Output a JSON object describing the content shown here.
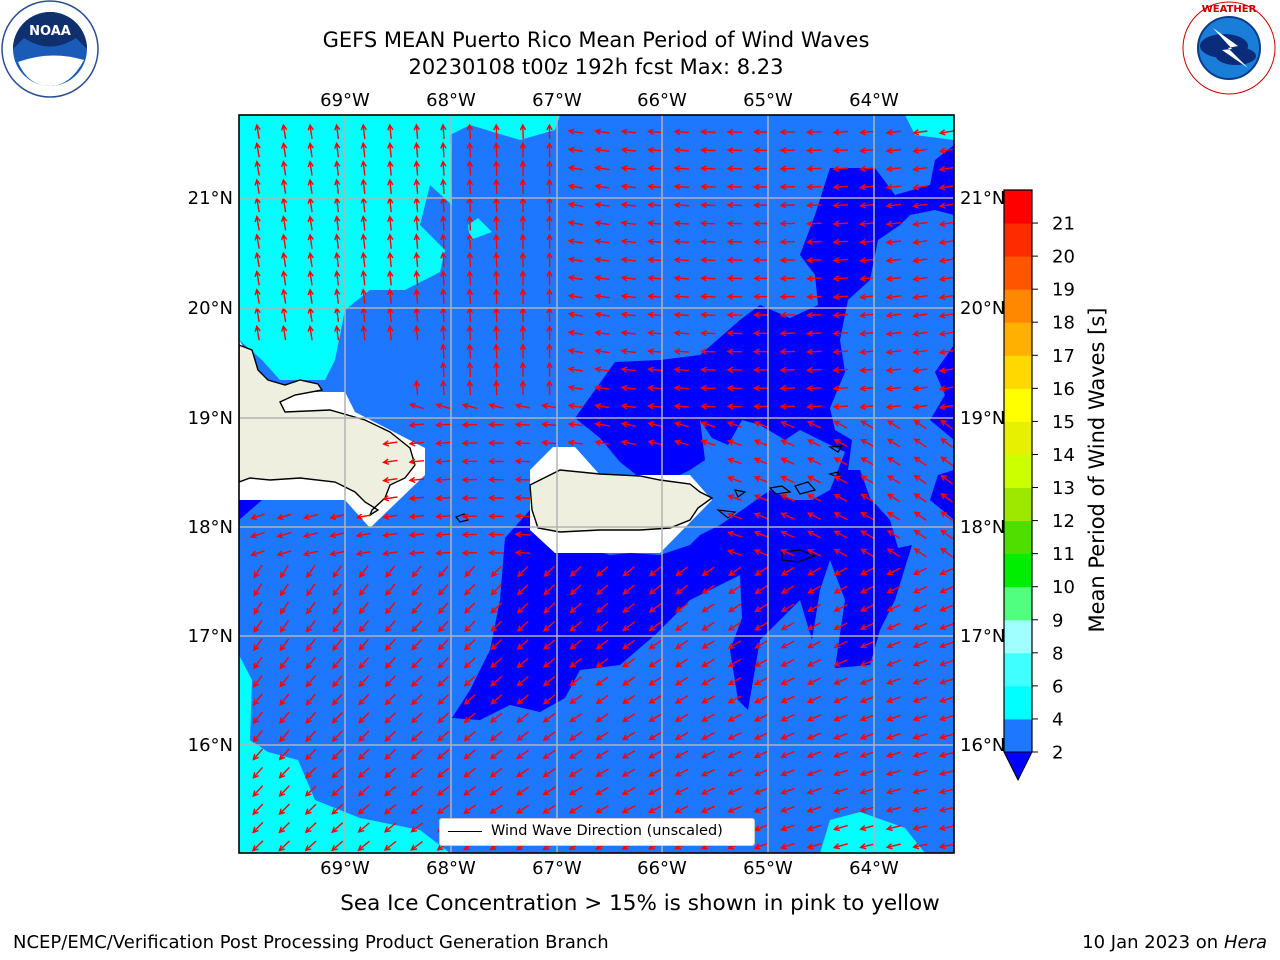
{
  "title": {
    "line1": "GEFS MEAN Puerto Rico Mean Period of Wind Waves",
    "line2": "20230108 t00z 192h fcst   Max: 8.23"
  },
  "map": {
    "lon_labels": [
      "69°W",
      "68°W",
      "67°W",
      "66°W",
      "65°W",
      "64°W"
    ],
    "lat_labels": [
      "21°N",
      "20°N",
      "19°N",
      "18°N",
      "17°N",
      "16°N"
    ],
    "legend_label": "Wind Wave Direction (unscaled)",
    "arrow_color": "#ff0000",
    "land_color": "#efefdf",
    "ocean_colors": {
      "below_2": "#0000ff",
      "2_4": "#1e78ff",
      "4_6": "#00ffff"
    }
  },
  "colorbar": {
    "label": "Mean Period of Wind Waves [s]",
    "ticks": [
      "2",
      "4",
      "6",
      "8",
      "9",
      "10",
      "11",
      "12",
      "13",
      "14",
      "15",
      "16",
      "17",
      "18",
      "19",
      "20",
      "21"
    ],
    "colors": [
      "#1e78ff",
      "#00ffff",
      "#40ffff",
      "#a0ffff",
      "#50ff80",
      "#00ee00",
      "#50dd00",
      "#9ee800",
      "#ccff00",
      "#e6f000",
      "#ffff00",
      "#ffd800",
      "#ffb000",
      "#ff8800",
      "#ff5500",
      "#ff2b00",
      "#ff0000"
    ],
    "under_color": "#0000ff"
  },
  "ice_note": "Sea Ice Concentration > 15% is shown in pink to yellow",
  "footer": {
    "left": "NCEP/EMC/Verification Post Processing Product Generation Branch",
    "right_prefix": "10 Jan 2023 on ",
    "right_host": "Hera"
  },
  "logos": {
    "left": "NOAA",
    "right_text": "NATIONAL WEATHER SERVICE"
  }
}
